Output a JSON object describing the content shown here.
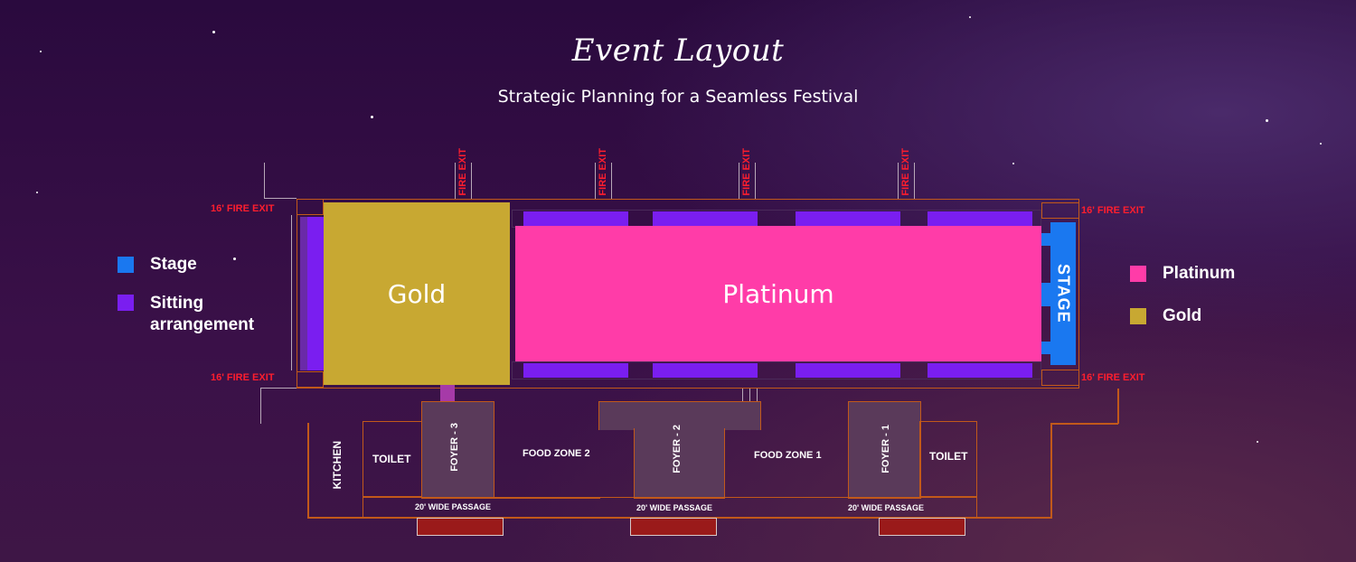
{
  "header": {
    "title": "Event Layout",
    "subtitle": "Strategic Planning for a Seamless Festival"
  },
  "colors": {
    "stage": "#1a78f0",
    "sitting": "#7a1ef0",
    "platinum": "#ff3ca8",
    "gold": "#c8a832",
    "outline": "#c2591a",
    "fire_exit_text": "#ff1e2e",
    "passage_block": "#9a1a1a"
  },
  "legend_left": [
    {
      "label": "Stage",
      "color_key": "stage"
    },
    {
      "label": "Sitting arrangement",
      "color_key": "sitting"
    }
  ],
  "legend_right": [
    {
      "label": "Platinum",
      "color_key": "platinum"
    },
    {
      "label": "Gold",
      "color_key": "gold"
    }
  ],
  "zones": {
    "gold": "Gold",
    "platinum": "Platinum",
    "stage": "STAGE"
  },
  "fire_exits": {
    "top": [
      "FIRE EXIT",
      "FIRE EXIT",
      "FIRE EXIT",
      "FIRE EXIT"
    ],
    "left_top": "16' FIRE EXIT",
    "left_bottom": "16' FIRE EXIT",
    "right_top": "16' FIRE EXIT",
    "right_bottom": "16' FIRE EXIT"
  },
  "facilities": {
    "kitchen": "KITCHEN",
    "toilet_left": "TOILET",
    "toilet_right": "TOILET",
    "foyer_3": "FOYER - 3",
    "foyer_2": "FOYER - 2",
    "foyer_1": "FOYER - 1",
    "food_zone_2": "FOOD ZONE  2",
    "food_zone_1": "FOOD ZONE 1",
    "passages": [
      "20' WIDE PASSAGE",
      "20' WIDE PASSAGE",
      "20' WIDE PASSAGE"
    ]
  }
}
